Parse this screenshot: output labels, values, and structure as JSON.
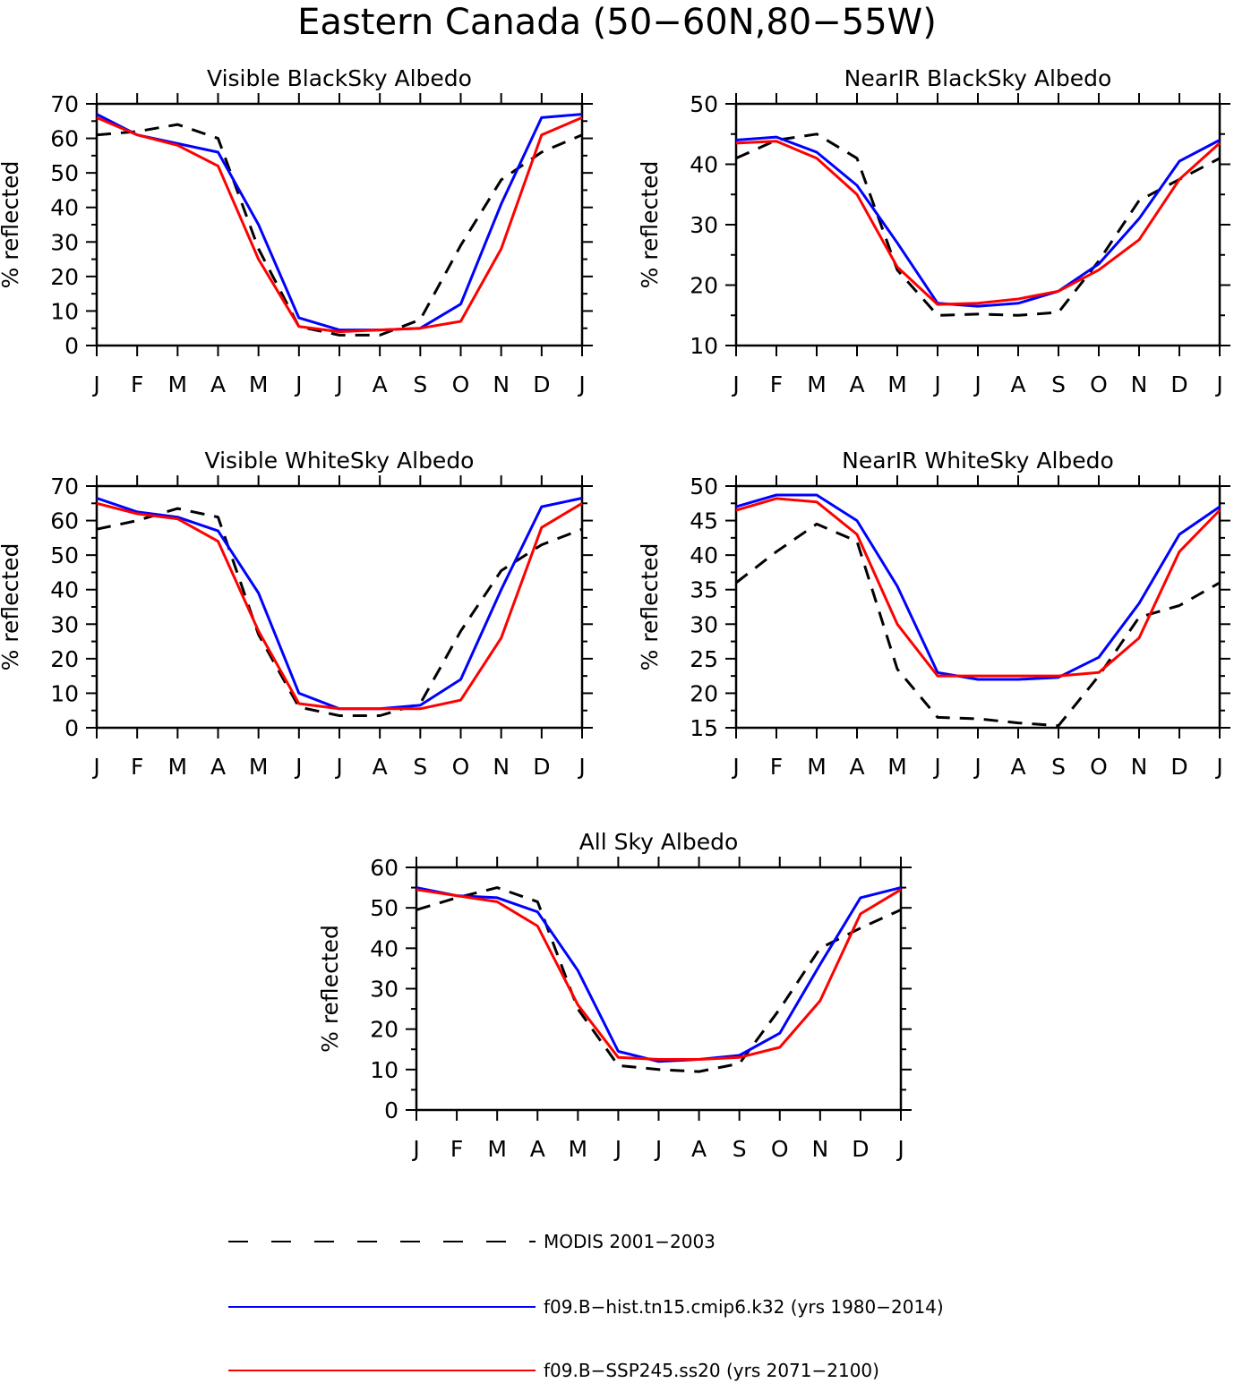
{
  "figure": {
    "title": "Eastern Canada (50−60N,80−55W)"
  },
  "legend": {
    "items": [
      {
        "label": "MODIS 2001−2003",
        "color": "#000000",
        "style": "dashed"
      },
      {
        "label": "f09.B−hist.tn15.cmip6.k32 (yrs 1980−2014)",
        "color": "#0000ff",
        "style": "solid"
      },
      {
        "label": "f09.B−SSP245.ss20 (yrs 2071−2100)",
        "color": "#ff0000",
        "style": "solid"
      }
    ]
  },
  "chart_data": [
    {
      "type": "line",
      "title": "Visible BlackSky Albedo",
      "ylabel": "% reflected",
      "xlabel": "",
      "ylim": [
        0,
        70
      ],
      "yticks": [
        0,
        10,
        20,
        30,
        40,
        50,
        60,
        70
      ],
      "categories": [
        "J",
        "F",
        "M",
        "A",
        "M",
        "J",
        "J",
        "A",
        "S",
        "O",
        "N",
        "D",
        "J"
      ],
      "series": [
        {
          "name": "MODIS 2001−2003",
          "color": "#000000",
          "style": "dashed",
          "values": [
            61,
            62,
            64,
            60,
            28,
            5.5,
            3,
            3,
            7.5,
            29,
            48,
            56,
            61
          ]
        },
        {
          "name": "f09.B−hist.tn15.cmip6.k32 (yrs 1980−2014)",
          "color": "#0000ff",
          "style": "solid",
          "values": [
            67,
            61,
            58.5,
            56,
            35,
            8,
            4.5,
            4.5,
            5,
            12,
            41,
            66,
            67
          ]
        },
        {
          "name": "f09.B−SSP245.ss20 (yrs 2071−2100)",
          "color": "#ff0000",
          "style": "solid",
          "values": [
            66,
            61,
            58,
            52,
            25,
            5.5,
            4,
            4.5,
            5,
            7,
            28,
            61,
            66
          ]
        }
      ]
    },
    {
      "type": "line",
      "title": "NearIR BlackSky Albedo",
      "ylabel": "% reflected",
      "xlabel": "",
      "ylim": [
        10,
        50
      ],
      "yticks": [
        10,
        20,
        30,
        40,
        50
      ],
      "categories": [
        "J",
        "F",
        "M",
        "A",
        "M",
        "J",
        "J",
        "A",
        "S",
        "O",
        "N",
        "D",
        "J"
      ],
      "series": [
        {
          "name": "MODIS 2001−2003",
          "color": "#000000",
          "style": "dashed",
          "values": [
            41,
            44,
            45,
            41,
            22.5,
            15,
            15.2,
            15,
            15.5,
            24,
            34,
            37.5,
            41
          ]
        },
        {
          "name": "f09.B−hist.tn15.cmip6.k32 (yrs 1980−2014)",
          "color": "#0000ff",
          "style": "solid",
          "values": [
            44,
            44.5,
            42,
            36.5,
            27,
            17,
            16.5,
            17,
            19,
            23.5,
            31,
            40.5,
            44
          ]
        },
        {
          "name": "f09.B−SSP245.ss20 (yrs 2071−2100)",
          "color": "#ff0000",
          "style": "solid",
          "values": [
            43.5,
            43.8,
            41,
            35,
            23,
            16.8,
            17,
            17.7,
            19,
            22.5,
            27.5,
            37.5,
            43.5
          ]
        }
      ]
    },
    {
      "type": "line",
      "title": "Visible WhiteSky Albedo",
      "ylabel": "% reflected",
      "xlabel": "",
      "ylim": [
        0,
        70
      ],
      "yticks": [
        0,
        10,
        20,
        30,
        40,
        50,
        60,
        70
      ],
      "categories": [
        "J",
        "F",
        "M",
        "A",
        "M",
        "J",
        "J",
        "A",
        "S",
        "O",
        "N",
        "D",
        "J"
      ],
      "series": [
        {
          "name": "MODIS 2001−2003",
          "color": "#000000",
          "style": "dashed",
          "values": [
            57.5,
            60,
            63.5,
            61,
            27,
            6,
            3.5,
            3.5,
            7,
            28,
            45.5,
            53,
            57.5
          ]
        },
        {
          "name": "f09.B−hist.tn15.cmip6.k32 (yrs 1980−2014)",
          "color": "#0000ff",
          "style": "solid",
          "values": [
            66.5,
            62.5,
            61,
            57,
            39,
            10,
            5.5,
            5.5,
            6.5,
            14,
            40,
            64,
            66.5
          ]
        },
        {
          "name": "f09.B−SSP245.ss20 (yrs 2071−2100)",
          "color": "#ff0000",
          "style": "solid",
          "values": [
            65,
            62,
            60.5,
            54,
            28,
            7,
            5.5,
            5.5,
            5.5,
            8,
            26,
            58,
            65
          ]
        }
      ]
    },
    {
      "type": "line",
      "title": "NearIR WhiteSky Albedo",
      "ylabel": "% reflected",
      "xlabel": "",
      "ylim": [
        15,
        50
      ],
      "yticks": [
        15,
        20,
        25,
        30,
        35,
        40,
        45,
        50
      ],
      "categories": [
        "J",
        "F",
        "M",
        "A",
        "M",
        "J",
        "J",
        "A",
        "S",
        "O",
        "N",
        "D",
        "J"
      ],
      "series": [
        {
          "name": "MODIS 2001−2003",
          "color": "#000000",
          "style": "dashed",
          "values": [
            36,
            40.5,
            44.5,
            42,
            23.5,
            16.5,
            16.3,
            15.7,
            15.3,
            22.5,
            31,
            32.7,
            36
          ]
        },
        {
          "name": "f09.B−hist.tn15.cmip6.k32 (yrs 1980−2014)",
          "color": "#0000ff",
          "style": "solid",
          "values": [
            47,
            48.7,
            48.7,
            45,
            35.5,
            23,
            22,
            22,
            22.3,
            25.2,
            33,
            43,
            47
          ]
        },
        {
          "name": "f09.B−SSP245.ss20 (yrs 2071−2100)",
          "color": "#ff0000",
          "style": "solid",
          "values": [
            46.5,
            48.2,
            47.7,
            43,
            30,
            22.5,
            22.5,
            22.5,
            22.5,
            23,
            28,
            40.5,
            46.5
          ]
        }
      ]
    },
    {
      "type": "line",
      "title": "All Sky Albedo",
      "ylabel": "% reflected",
      "xlabel": "",
      "ylim": [
        0,
        60
      ],
      "yticks": [
        0,
        10,
        20,
        30,
        40,
        50,
        60
      ],
      "categories": [
        "J",
        "F",
        "M",
        "A",
        "M",
        "J",
        "J",
        "A",
        "S",
        "O",
        "N",
        "D",
        "J"
      ],
      "series": [
        {
          "name": "MODIS 2001−2003",
          "color": "#000000",
          "style": "dashed",
          "values": [
            49.5,
            52.5,
            55,
            51.5,
            25,
            11,
            10,
            9.5,
            11.5,
            25,
            40,
            45,
            49.5
          ]
        },
        {
          "name": "f09.B−hist.tn15.cmip6.k32 (yrs 1980−2014)",
          "color": "#0000ff",
          "style": "solid",
          "values": [
            55,
            53,
            52.5,
            49,
            34.5,
            14.5,
            12,
            12.5,
            13.5,
            19,
            36,
            52.5,
            55
          ]
        },
        {
          "name": "f09.B−SSP245.ss20 (yrs 2071−2100)",
          "color": "#ff0000",
          "style": "solid",
          "values": [
            54.5,
            53,
            51.5,
            45.5,
            26,
            13,
            12.5,
            12.5,
            13,
            15.5,
            27,
            48.5,
            54.5
          ]
        }
      ]
    }
  ]
}
